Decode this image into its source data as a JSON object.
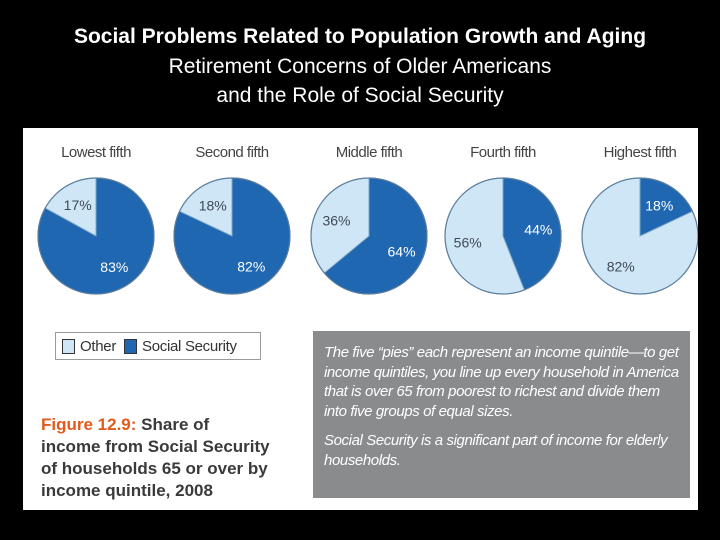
{
  "slide": {
    "title_line1": "Social Problems Related to Population Growth and Aging",
    "title_line2": "Retirement Concerns of Older Americans",
    "title_line3": "and the Role of Social Security"
  },
  "colors": {
    "other": "#cfe6f7",
    "social_security": "#1f67b0",
    "figure_label": "#e25a1c",
    "note_bg": "#8a8b8d"
  },
  "chart_data": {
    "type": "pie",
    "series_names": [
      "Other",
      "Social Security"
    ],
    "pies": [
      {
        "title": "Lowest fifth",
        "other": 17,
        "social_security": 83,
        "other_label": "17%",
        "ss_label": "83%"
      },
      {
        "title": "Second fifth",
        "other": 18,
        "social_security": 82,
        "other_label": "18%",
        "ss_label": "82%"
      },
      {
        "title": "Middle fifth",
        "other": 36,
        "social_security": 64,
        "other_label": "36%",
        "ss_label": "64%"
      },
      {
        "title": "Fourth fifth",
        "other": 56,
        "social_security": 44,
        "other_label": "56%",
        "ss_label": "44%"
      },
      {
        "title": "Highest fifth",
        "other": 82,
        "social_security": 18,
        "other_label": "82%",
        "ss_label": "18%"
      }
    ]
  },
  "legend": {
    "other_label": "Other",
    "ss_label": "Social Security"
  },
  "caption": {
    "figure_label": "Figure 12.9:",
    "text_part1": "Share of",
    "text_part2": "income from Social Security",
    "text_part3": "of households 65 or over by",
    "text_part4": "income quintile, 2008"
  },
  "note": {
    "paragraph1": "The five “pies” each represent an income quintile—to get income quintiles, you line up every household in America that is over 65 from poorest to richest and divide them into five groups of equal sizes.",
    "paragraph2": "Social Security is a significant part of income for elderly households."
  }
}
